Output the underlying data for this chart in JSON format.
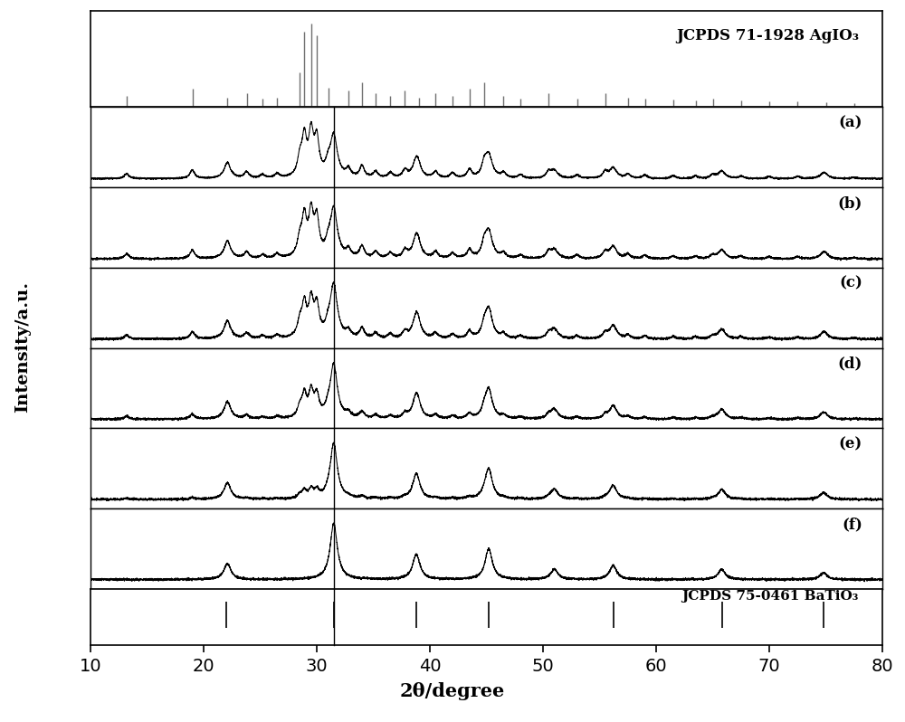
{
  "xlim": [
    10,
    80
  ],
  "xlabel": "2θ/degree",
  "ylabel": "Intensity/a.u.",
  "curve_labels": [
    "(a)",
    "(b)",
    "(c)",
    "(d)",
    "(e)",
    "(f)"
  ],
  "agio3_label": "JCPDS 71-1928 AgIO₃",
  "batio3_label": "JCPDS 75-0461 BaTiO₃",
  "agio3_peaks": [
    13.2,
    19.0,
    22.1,
    23.8,
    25.2,
    26.5,
    28.5,
    28.9,
    29.5,
    30.0,
    31.0,
    32.8,
    34.0,
    35.2,
    36.5,
    37.8,
    39.0,
    40.5,
    42.0,
    43.5,
    44.8,
    46.5,
    48.0,
    50.5,
    53.0,
    55.5,
    57.5,
    59.0,
    61.5,
    63.5,
    65.0,
    67.5,
    70.0,
    72.5,
    75.0,
    77.5
  ],
  "agio3_intensities": [
    0.12,
    0.2,
    0.1,
    0.15,
    0.08,
    0.1,
    0.4,
    0.9,
    1.0,
    0.85,
    0.22,
    0.18,
    0.28,
    0.15,
    0.12,
    0.18,
    0.1,
    0.15,
    0.12,
    0.2,
    0.28,
    0.12,
    0.08,
    0.15,
    0.08,
    0.15,
    0.1,
    0.08,
    0.07,
    0.06,
    0.08,
    0.06,
    0.05,
    0.05,
    0.04,
    0.03
  ],
  "batio3_peaks": [
    22.1,
    31.5,
    38.8,
    45.2,
    51.0,
    56.2,
    65.8,
    74.8
  ],
  "batio3_intensities": [
    0.28,
    1.0,
    0.45,
    0.55,
    0.18,
    0.25,
    0.18,
    0.12
  ],
  "batio3_ref_peaks": [
    22.0,
    31.5,
    38.8,
    45.2,
    56.2,
    65.8,
    74.8
  ],
  "agio3_fractions": [
    1.0,
    0.85,
    0.65,
    0.45,
    0.15,
    0.0
  ],
  "curve_color": "#000000",
  "ref_color": "#707070",
  "background_color": "#ffffff",
  "seed": 42,
  "figsize": [
    10.0,
    7.98
  ],
  "dpi": 100
}
